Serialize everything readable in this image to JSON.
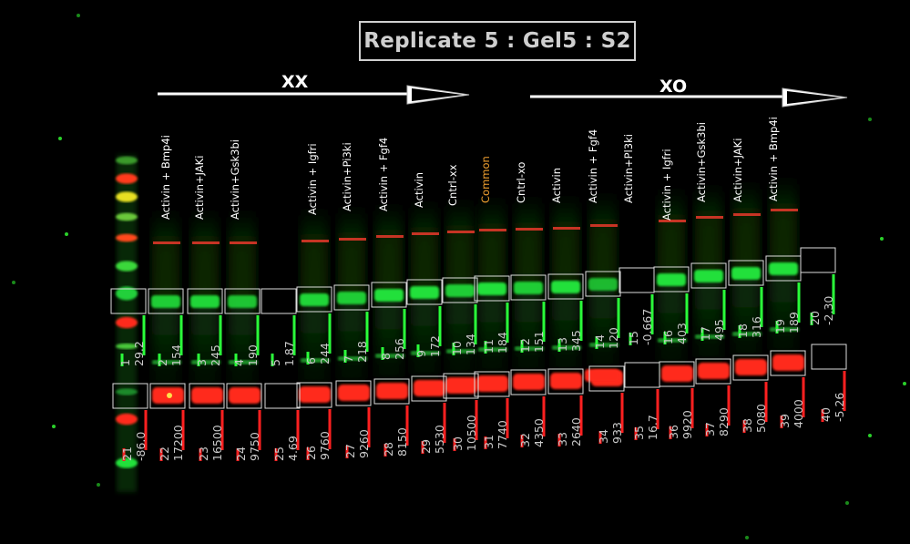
{
  "title": "Replicate 5 : Gel5 : S2",
  "groups": {
    "xx": "XX",
    "xo": "XO"
  },
  "lanes": [
    {
      "label": "Activin + Bmp4i",
      "common": false
    },
    {
      "label": "Activin+JAKi",
      "common": false
    },
    {
      "label": "Activin+Gsk3bi",
      "common": false
    },
    {
      "label": "Activin + Igfri",
      "common": false
    },
    {
      "label": "Activin+Pi3ki",
      "common": false
    },
    {
      "label": "Activin + Fgf4",
      "common": false
    },
    {
      "label": "Activin",
      "common": false
    },
    {
      "label": "Cntrl-xx",
      "common": false
    },
    {
      "label": "Common",
      "common": true
    },
    {
      "label": "Cntrl-xo",
      "common": false
    },
    {
      "label": "Activin",
      "common": false
    },
    {
      "label": "Activin + Fgf4",
      "common": false
    },
    {
      "label": "Activin+Pl3ki",
      "common": false
    },
    {
      "label": "Activin + Igfri",
      "common": false
    },
    {
      "label": "Activin+Gsk3bi",
      "common": false
    },
    {
      "label": "Activin+JAKi",
      "common": false
    },
    {
      "label": "Activin + Bmp4i",
      "common": false
    }
  ],
  "green_quant": [
    {
      "id": "1",
      "value": "29.2"
    },
    {
      "id": "2",
      "value": "154"
    },
    {
      "id": "3",
      "value": "245"
    },
    {
      "id": "4",
      "value": "190"
    },
    {
      "id": "5",
      "value": "1.87"
    },
    {
      "id": "6",
      "value": "244"
    },
    {
      "id": "7",
      "value": "218"
    },
    {
      "id": "8",
      "value": "256"
    },
    {
      "id": "9",
      "value": "172"
    },
    {
      "id": "10",
      "value": "134"
    },
    {
      "id": "11",
      "value": "184"
    },
    {
      "id": "12",
      "value": "151"
    },
    {
      "id": "13",
      "value": "345"
    },
    {
      "id": "14",
      "value": "120"
    },
    {
      "id": "15",
      "value": "-0.667"
    },
    {
      "id": "16",
      "value": "403"
    },
    {
      "id": "17",
      "value": "495"
    },
    {
      "id": "18",
      "value": "316"
    },
    {
      "id": "19",
      "value": "189"
    },
    {
      "id": "20",
      "value": "-2.30"
    }
  ],
  "red_quant": [
    {
      "id": "21",
      "value": "-86.0"
    },
    {
      "id": "22",
      "value": "17200"
    },
    {
      "id": "23",
      "value": "16500"
    },
    {
      "id": "24",
      "value": "9750"
    },
    {
      "id": "25",
      "value": "4.69"
    },
    {
      "id": "26",
      "value": "9760"
    },
    {
      "id": "27",
      "value": "9260"
    },
    {
      "id": "28",
      "value": "8150"
    },
    {
      "id": "29",
      "value": "5530"
    },
    {
      "id": "30",
      "value": "10500"
    },
    {
      "id": "31",
      "value": "7740"
    },
    {
      "id": "32",
      "value": "4350"
    },
    {
      "id": "33",
      "value": "2640"
    },
    {
      "id": "34",
      "value": "933"
    },
    {
      "id": "35",
      "value": "16.7"
    },
    {
      "id": "36",
      "value": "9920"
    },
    {
      "id": "37",
      "value": "8290"
    },
    {
      "id": "38",
      "value": "5080"
    },
    {
      "id": "39",
      "value": "4000"
    },
    {
      "id": "40",
      "value": "-5.26"
    }
  ],
  "colors": {
    "green_band": "#22e03a",
    "red_band": "#ff2a1a",
    "box": "#dddddd",
    "common_label": "#f0a030",
    "label_text": "#ffffff"
  }
}
